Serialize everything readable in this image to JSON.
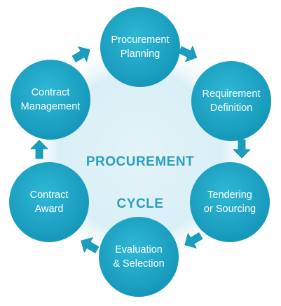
{
  "diagram": {
    "title_line1": "PROCUREMENT",
    "title_line2": "CYCLE",
    "colors": {
      "node_fill": "#1aa3c4",
      "node_fill_light": "#2bb4d2",
      "arrow": "#1a9ec0",
      "title": "#2a9fbf",
      "halo": "#d6eef6"
    },
    "nodes": [
      {
        "id": "planning",
        "label": "Procurement\nPlanning"
      },
      {
        "id": "requirement",
        "label": "Requirement\nDefinition"
      },
      {
        "id": "tendering",
        "label": "Tendering\nor Sourcing"
      },
      {
        "id": "evaluation",
        "label": "Evaluation\n& Selection"
      },
      {
        "id": "award",
        "label": "Contract\nAward"
      },
      {
        "id": "management",
        "label": "Contract\nManagement"
      }
    ]
  }
}
